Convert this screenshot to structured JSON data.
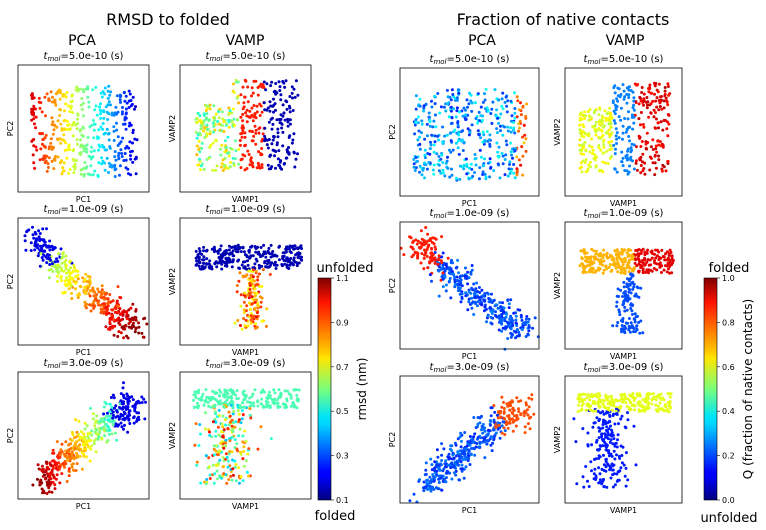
{
  "figure_titles": {
    "left": "RMSD to folded",
    "right": "Fraction of native contacts"
  },
  "column_titles": {
    "pca": "PCA",
    "vamp": "VAMP"
  },
  "chart_data": [
    {
      "type": "scatter",
      "title": "RMSD to folded",
      "color_variable": "rmsd (nm)",
      "colormap": "jet",
      "colorbar": {
        "label": "rmsd (nm)",
        "range": [
          0.1,
          1.1
        ],
        "ticks": [
          "0.1",
          "0.3",
          "0.5",
          "0.7",
          "0.9",
          "1.1"
        ],
        "top_label": "unfolded",
        "bottom_label": "folded"
      },
      "panels": [
        {
          "method": "PCA",
          "tmol": "5.0e-10 (s)",
          "xlabel": "PC1",
          "ylabel": "PC2"
        },
        {
          "method": "VAMP",
          "tmol": "5.0e-10 (s)",
          "xlabel": "VAMP1",
          "ylabel": "VAMP2"
        },
        {
          "method": "PCA",
          "tmol": "1.0e-09 (s)",
          "xlabel": "PC1",
          "ylabel": "PC2"
        },
        {
          "method": "VAMP",
          "tmol": "1.0e-09 (s)",
          "xlabel": "VAMP1",
          "ylabel": "VAMP2"
        },
        {
          "method": "PCA",
          "tmol": "3.0e-09 (s)",
          "xlabel": "PC1",
          "ylabel": "PC2"
        },
        {
          "method": "VAMP",
          "tmol": "3.0e-09 (s)",
          "xlabel": "VAMP1",
          "ylabel": "VAMP2"
        }
      ]
    },
    {
      "type": "scatter",
      "title": "Fraction of native contacts",
      "color_variable": "Q (fraction of native contacts)",
      "colormap": "jet",
      "colorbar": {
        "label": "Q (fraction of native contacts)",
        "range": [
          0.0,
          1.0
        ],
        "ticks": [
          "0.0",
          "0.2",
          "0.4",
          "0.6",
          "0.8",
          "1.0"
        ],
        "top_label": "folded",
        "bottom_label": "unfolded"
      },
      "panels": [
        {
          "method": "PCA",
          "tmol": "5.0e-10 (s)",
          "xlabel": "PC1",
          "ylabel": "PC2"
        },
        {
          "method": "VAMP",
          "tmol": "5.0e-10 (s)",
          "xlabel": "VAMP1",
          "ylabel": "VAMP2"
        },
        {
          "method": "PCA",
          "tmol": "1.0e-09 (s)",
          "xlabel": "PC1",
          "ylabel": "PC2"
        },
        {
          "method": "VAMP",
          "tmol": "1.0e-09 (s)",
          "xlabel": "VAMP1",
          "ylabel": "VAMP2"
        },
        {
          "method": "PCA",
          "tmol": "3.0e-09 (s)",
          "xlabel": "PC1",
          "ylabel": "PC2"
        },
        {
          "method": "VAMP",
          "tmol": "3.0e-09 (s)",
          "xlabel": "VAMP1",
          "ylabel": "VAMP2"
        }
      ]
    }
  ]
}
